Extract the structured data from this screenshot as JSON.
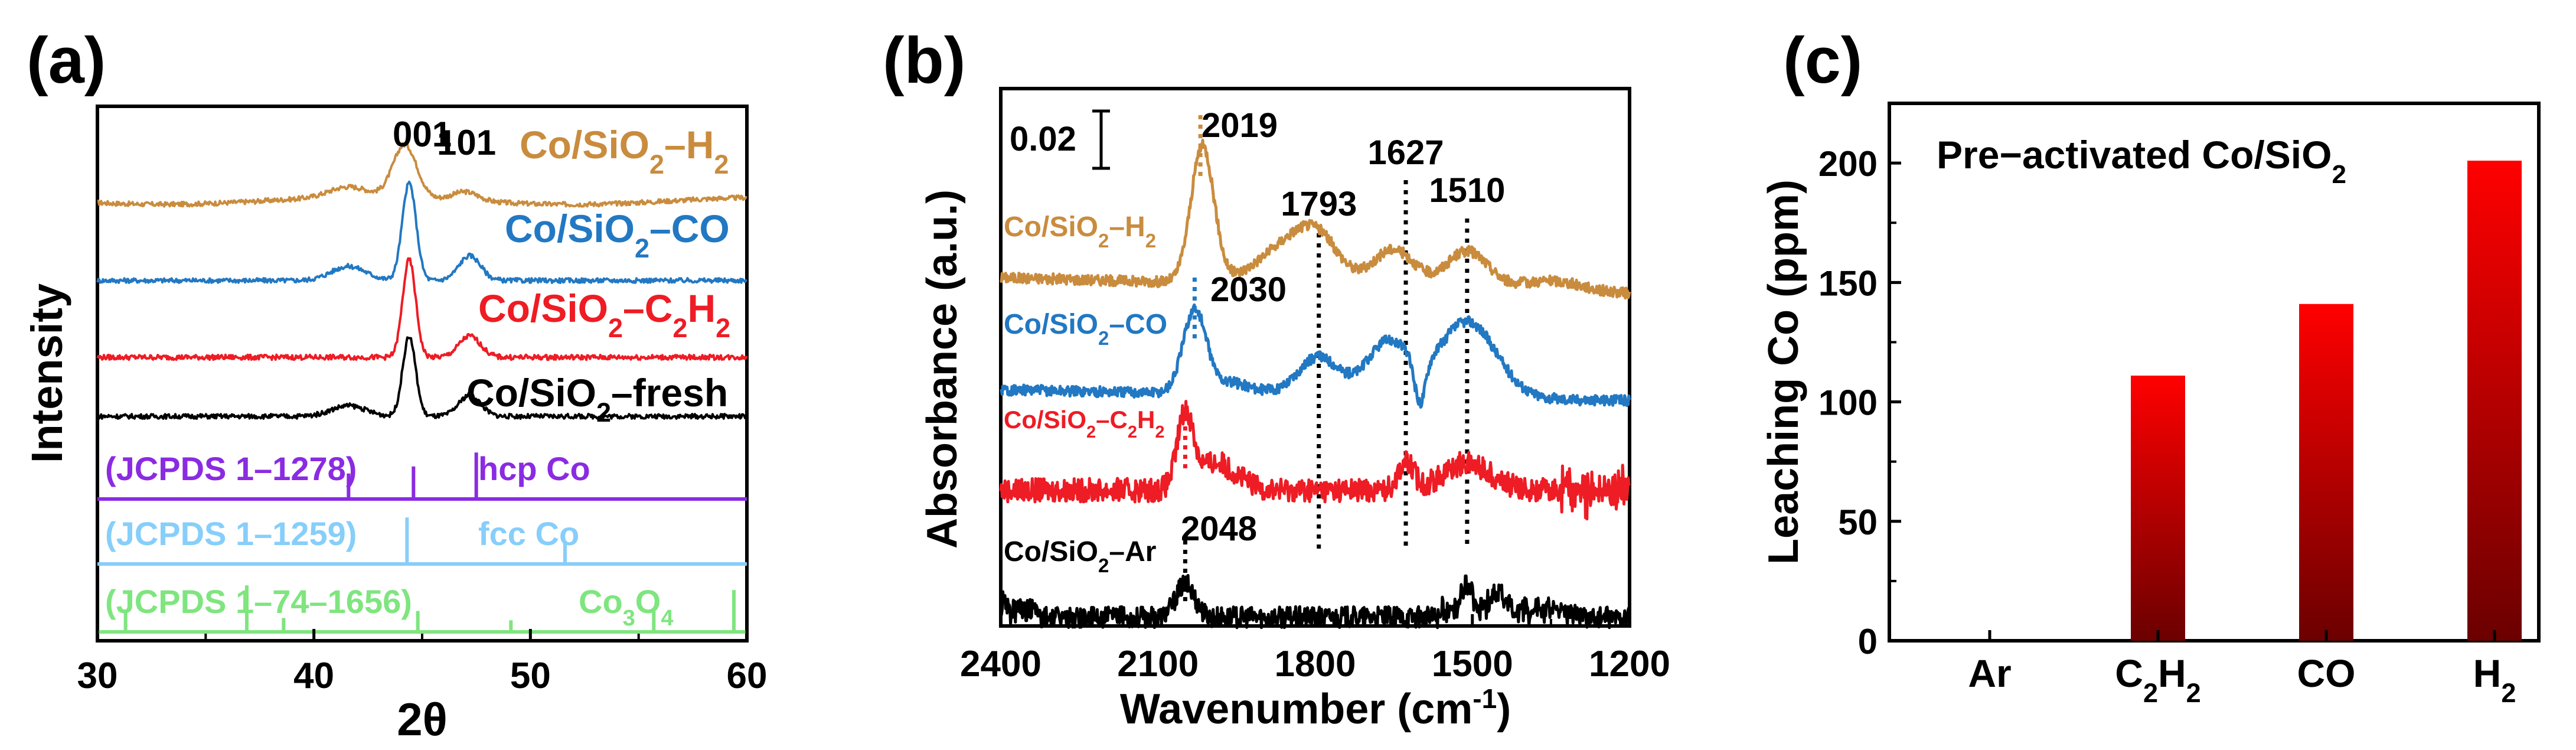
{
  "chart_data": [
    {
      "id": "a",
      "type": "line",
      "panel_label": "(a)",
      "xlabel": "2θ",
      "ylabel": "Intensity",
      "xlim": [
        30,
        60
      ],
      "x_ticks": [
        30,
        40,
        50,
        60
      ],
      "peak_labels": [
        {
          "text": "001",
          "x": 44.3
        },
        {
          "text": "101",
          "x": 47.5
        }
      ],
      "series": [
        {
          "name": "Co/SiO₂–H₂",
          "label_main": "Co/SiO",
          "sub1": "2",
          "label_mid": "–H",
          "sub2": "2",
          "color": "#c98c3e",
          "baseline": 0.6,
          "noise": 0.012,
          "peaks": [
            [
              41.6,
              0.06,
              0.9
            ],
            [
              44.2,
              0.3,
              0.55
            ],
            [
              47.0,
              0.05,
              0.6
            ]
          ]
        },
        {
          "name": "Co/SiO₂–CO",
          "label_main": "Co/SiO",
          "sub1": "2",
          "label_mid": "–CO",
          "sub2": "",
          "color": "#2278c2",
          "baseline": 2.6,
          "noise": 0.012,
          "peaks": [
            [
              41.6,
              0.08,
              0.8
            ],
            [
              44.4,
              0.55,
              0.32
            ],
            [
              47.2,
              0.14,
              0.5
            ]
          ]
        },
        {
          "name": "Co/SiO₂–C₂H₂",
          "label_main": "Co/SiO",
          "sub1": "2",
          "label_mid": "–C",
          "sub2": "2",
          "label_end": "H",
          "sub3": "2",
          "color": "#ee1c24",
          "baseline": 4.55,
          "noise": 0.013,
          "peaks": [
            [
              44.4,
              0.55,
              0.3
            ],
            [
              47.2,
              0.12,
              0.5
            ]
          ]
        },
        {
          "name": "Co/SiO₂–fresh",
          "label_main": "Co/SiO",
          "sub1": "2",
          "label_mid": "–fresh",
          "sub2": "",
          "color": "#000000",
          "baseline": 5.9,
          "noise": 0.012,
          "peaks": [
            [
              41.6,
              0.06,
              0.8
            ],
            [
              44.4,
              0.45,
              0.3
            ],
            [
              47.2,
              0.12,
              0.5
            ]
          ]
        }
      ],
      "references": [
        {
          "card": "(JCPDS 1–1278)",
          "phase": "hcp Co",
          "color": "#8a2be2",
          "lines": [
            [
              41.6,
              0.55
            ],
            [
              44.6,
              0.7
            ],
            [
              47.5,
              1.0
            ]
          ]
        },
        {
          "card": "(JCPDS 1–1259)",
          "phase": "fcc Co",
          "color": "#87cefa",
          "lines": [
            [
              44.3,
              1.0
            ],
            [
              51.6,
              0.45
            ]
          ]
        },
        {
          "card": "(JCPDS 1–74–1656)",
          "phase_main": "Co",
          "phase_sub1": "3",
          "phase_mid": "O",
          "phase_sub2": "4",
          "color": "#7fe57f",
          "lines": [
            [
              31.3,
              0.45
            ],
            [
              36.9,
              1.0
            ],
            [
              38.6,
              0.3
            ],
            [
              44.8,
              0.45
            ],
            [
              49.1,
              0.25
            ],
            [
              55.7,
              0.45
            ],
            [
              59.4,
              0.9
            ]
          ]
        }
      ]
    },
    {
      "id": "b",
      "type": "line",
      "panel_label": "(b)",
      "xlabel_main": "Wavenumber (cm",
      "xlabel_sup": "-1",
      "xlabel_end": ")",
      "ylabel": "Absorbance (a.u.)",
      "xlim": [
        2400,
        1200
      ],
      "x_ticks": [
        2400,
        2100,
        1800,
        1500,
        1200
      ],
      "scale_bar": "0.02",
      "vlines": [
        1793,
        1627,
        1510
      ],
      "vline_labels": [
        "1793",
        "1627",
        "1510"
      ],
      "series": [
        {
          "name": "Co/SiO₂–H₂",
          "label_main": "Co/SiO",
          "sub1": "2",
          "label_mid": "–H",
          "sub2": "2",
          "color": "#c98c3e",
          "peak_label": "2019",
          "peak_x": 2019,
          "baseline": 0.0,
          "noise": 0.004,
          "peaks": [
            [
              2015,
              0.125,
              22
            ],
            [
              1850,
              0.035,
              60
            ],
            [
              1793,
              0.03,
              40
            ],
            [
              1650,
              0.035,
              40
            ],
            [
              1510,
              0.035,
              40
            ],
            [
              1350,
              0.01,
              60
            ]
          ],
          "drift": -0.015
        },
        {
          "name": "Co/SiO₂–CO",
          "label_main": "Co/SiO",
          "sub1": "2",
          "label_mid": "–CO",
          "sub2": "",
          "color": "#2278c2",
          "peak_label": "2030",
          "peak_x": 2030,
          "baseline": 0.0,
          "noise": 0.004,
          "peaks": [
            [
              2030,
              0.075,
              22
            ],
            [
              1960,
              0.01,
              40
            ],
            [
              1793,
              0.035,
              40
            ],
            [
              1660,
              0.05,
              40
            ],
            [
              1600,
              -0.04,
              10
            ],
            [
              1510,
              0.07,
              55
            ]
          ],
          "drift": -0.01
        },
        {
          "name": "Co/SiO₂–C₂H₂",
          "label_main": "Co/SiO",
          "sub1": "2",
          "label_mid": "–C",
          "sub2": "2",
          "label_end": "H",
          "sub3": "2",
          "color": "#ee1c24",
          "peak_label": "",
          "peak_x": 2048,
          "baseline": 0.0,
          "noise": 0.009,
          "peaks": [
            [
              2048,
              0.065,
              15
            ],
            [
              1990,
              0.025,
              40
            ],
            [
              1627,
              0.025,
              15
            ],
            [
              1510,
              0.025,
              45
            ]
          ],
          "drift": 0.0
        },
        {
          "name": "Co/SiO₂–Ar",
          "label_main": "Co/SiO",
          "sub1": "2",
          "label_mid": "–Ar",
          "sub2": "",
          "color": "#000000",
          "peak_label": "2048",
          "peak_x": 2048,
          "baseline": 0.0,
          "noise": 0.008,
          "peaks": [
            [
              2048,
              0.03,
              18
            ],
            [
              1510,
              0.025,
              10
            ],
            [
              1450,
              0.015,
              15
            ]
          ],
          "drift": 0.0
        }
      ]
    },
    {
      "id": "c",
      "type": "bar",
      "panel_label": "(c)",
      "title_main": "Pre−activated Co/SiO",
      "title_sub": "2",
      "ylabel": "Leaching Co  (ppm)",
      "ylim": [
        0,
        225
      ],
      "y_ticks": [
        0,
        50,
        100,
        150,
        200
      ],
      "categories": [
        "Ar",
        "C₂H₂",
        "CO",
        "H₂"
      ],
      "category_parts": [
        {
          "main": "Ar"
        },
        {
          "main": "C",
          "sub1": "2",
          "mid": "H",
          "sub2": "2"
        },
        {
          "main": "CO"
        },
        {
          "main": "H",
          "sub1": "2"
        }
      ],
      "values": [
        0,
        111,
        141,
        201
      ],
      "gradient_top": "#ff0000",
      "gradient_bottom": "#6b0000"
    }
  ]
}
